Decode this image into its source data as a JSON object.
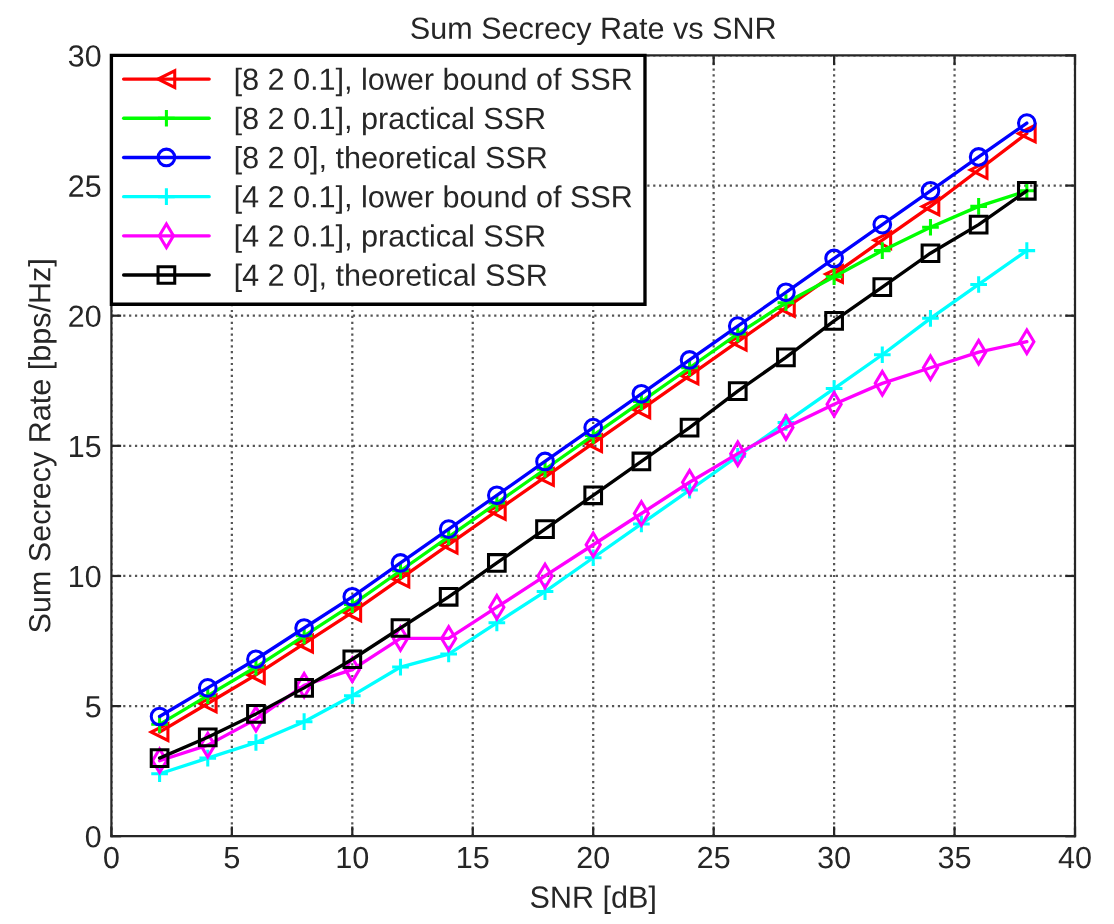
{
  "chart_data": {
    "type": "line",
    "title": "Sum Secrecy Rate vs SNR",
    "xlabel": "SNR [dB]",
    "ylabel": "Sum Secrecy Rate [bps/Hz]",
    "x": [
      2,
      4,
      6,
      8,
      10,
      12,
      14,
      16,
      18,
      20,
      22,
      24,
      26,
      28,
      30,
      32,
      34,
      36,
      38
    ],
    "series": [
      {
        "name": "[8 2 0.1], lower bound of SSR",
        "color": "#ff0000",
        "marker": "triangle",
        "values": [
          4.0,
          5.1,
          6.2,
          7.4,
          8.6,
          9.9,
          11.2,
          12.5,
          13.8,
          15.1,
          16.4,
          17.7,
          19.0,
          20.3,
          21.6,
          22.9,
          24.2,
          25.6,
          27.0
        ]
      },
      {
        "name": "[8 2 0.1], practical SSR",
        "color": "#00ff00",
        "marker": "cross",
        "values": [
          4.3,
          5.4,
          6.5,
          7.7,
          8.9,
          10.2,
          11.5,
          12.8,
          14.1,
          15.4,
          16.7,
          18.0,
          19.3,
          20.5,
          21.5,
          22.5,
          23.4,
          24.2,
          24.8
        ]
      },
      {
        "name": "[8 2 0], theoretical SSR",
        "color": "#0000ff",
        "marker": "circle",
        "values": [
          4.6,
          5.7,
          6.8,
          8.0,
          9.2,
          10.5,
          11.8,
          13.1,
          14.4,
          15.7,
          17.0,
          18.3,
          19.6,
          20.9,
          22.2,
          23.5,
          24.8,
          26.1,
          27.4
        ]
      },
      {
        "name": "[4 2 0.1], lower bound of SSR",
        "color": "#00ffff",
        "marker": "cross",
        "values": [
          2.4,
          3.0,
          3.6,
          4.4,
          5.4,
          6.5,
          7.0,
          8.2,
          9.4,
          10.7,
          12.0,
          13.3,
          14.6,
          15.9,
          17.2,
          18.5,
          19.9,
          21.2,
          22.5
        ]
      },
      {
        "name": "[4 2 0.1], practical SSR",
        "color": "#ff00ff",
        "marker": "diamond",
        "values": [
          2.9,
          3.5,
          4.5,
          5.8,
          6.4,
          7.6,
          7.6,
          8.8,
          10.0,
          11.2,
          12.4,
          13.6,
          14.7,
          15.7,
          16.6,
          17.4,
          18.0,
          18.6,
          19.0
        ]
      },
      {
        "name": "[4 2 0], theoretical SSR",
        "color": "#000000",
        "marker": "square",
        "values": [
          3.0,
          3.8,
          4.7,
          5.7,
          6.8,
          8.0,
          9.2,
          10.5,
          11.8,
          13.1,
          14.4,
          15.7,
          17.1,
          18.4,
          19.8,
          21.1,
          22.4,
          23.5,
          24.8
        ]
      }
    ],
    "xlim": [
      0,
      40
    ],
    "xticks": [
      0,
      5,
      10,
      15,
      20,
      25,
      30,
      35,
      40
    ],
    "ylim": [
      0,
      30
    ],
    "yticks": [
      0,
      5,
      10,
      15,
      20,
      25,
      30
    ],
    "grid": true,
    "legend": "top left",
    "line_style": "solid"
  }
}
